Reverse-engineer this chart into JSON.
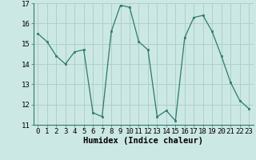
{
  "x": [
    0,
    1,
    2,
    3,
    4,
    5,
    6,
    7,
    8,
    9,
    10,
    11,
    12,
    13,
    14,
    15,
    16,
    17,
    18,
    19,
    20,
    21,
    22,
    23
  ],
  "y": [
    15.5,
    15.1,
    14.4,
    14.0,
    14.6,
    14.7,
    11.6,
    11.4,
    15.6,
    16.9,
    16.8,
    15.1,
    14.7,
    11.4,
    11.7,
    11.2,
    15.3,
    16.3,
    16.4,
    15.6,
    14.4,
    13.1,
    12.2,
    11.8
  ],
  "line_color": "#2d7a6e",
  "marker_color": "#2d7a6e",
  "bg_color": "#cce8e4",
  "grid_color": "#b0ceca",
  "xlabel": "Humidex (Indice chaleur)",
  "ylim": [
    11,
    17
  ],
  "xlim_min": -0.5,
  "xlim_max": 23.5,
  "yticks": [
    11,
    12,
    13,
    14,
    15,
    16,
    17
  ],
  "xticks": [
    0,
    1,
    2,
    3,
    4,
    5,
    6,
    7,
    8,
    9,
    10,
    11,
    12,
    13,
    14,
    15,
    16,
    17,
    18,
    19,
    20,
    21,
    22,
    23
  ],
  "xlabel_fontsize": 7.5,
  "tick_fontsize": 6.5
}
